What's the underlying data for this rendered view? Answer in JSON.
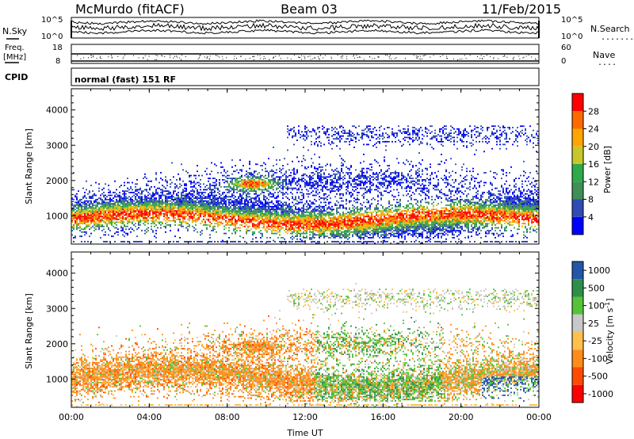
{
  "header": {
    "station": "McMurdo (fitACF)",
    "beam": "Beam 03",
    "date": "11/Feb/2015"
  },
  "noise_panel": {
    "left_label": "N.Sky",
    "right_label": "N.Search",
    "right_legend_dots": ".......",
    "left_ticks": [
      "10^5",
      "10^0"
    ],
    "right_ticks": [
      "10^5",
      "10^0"
    ]
  },
  "freq_panel": {
    "left_label_line1": "Freq.",
    "left_label_line2": "[MHz]",
    "right_label": "Nave",
    "right_legend_dots": "....",
    "left_ticks": [
      "18",
      "8"
    ],
    "right_ticks": [
      "60",
      "0"
    ]
  },
  "cpid": {
    "label": "CPID",
    "value": "normal (fast) 151 RF"
  },
  "colors": {
    "power": [
      "#0000ff",
      "#2e4cb4",
      "#3f8f56",
      "#2faa4a",
      "#c7c72b",
      "#ffa500",
      "#ff6a00",
      "#ff0000"
    ],
    "velocity": [
      "#ff0000",
      "#ff4a00",
      "#ff8c1a",
      "#ffc04d",
      "#c8c8c8",
      "#55c33a",
      "#2e8f4a",
      "#2356a8"
    ]
  },
  "chart_data": [
    {
      "type": "heatmap",
      "name": "power",
      "ylabel": "Slant Range [km]",
      "ylim": [
        200,
        4600
      ],
      "yticks": [
        "1000",
        "2000",
        "3000",
        "4000"
      ],
      "xlim": [
        0,
        24
      ],
      "xticks": [
        "00:00",
        "04:00",
        "08:00",
        "12:00",
        "16:00",
        "20:00",
        "00:00"
      ],
      "colorbar": {
        "label": "Power [dB]",
        "ticks": [
          "4",
          "8",
          "12",
          "16",
          "20",
          "24",
          "28"
        ]
      }
    },
    {
      "type": "heatmap",
      "name": "velocity",
      "ylabel": "Slant Range [km]",
      "ylim": [
        200,
        4600
      ],
      "yticks": [
        "1000",
        "2000",
        "3000",
        "4000"
      ],
      "xlim": [
        0,
        24
      ],
      "xticks": [
        "00:00",
        "04:00",
        "08:00",
        "12:00",
        "16:00",
        "20:00",
        "00:00"
      ],
      "xlabel": "Time UT",
      "colorbar": {
        "label_main": "Velocity [m s",
        "label_sup": "-1",
        "label_end": "]",
        "ticks": [
          "1000",
          "500",
          "100",
          "25",
          "-25",
          "-100",
          "-500",
          "-1000"
        ]
      }
    }
  ]
}
